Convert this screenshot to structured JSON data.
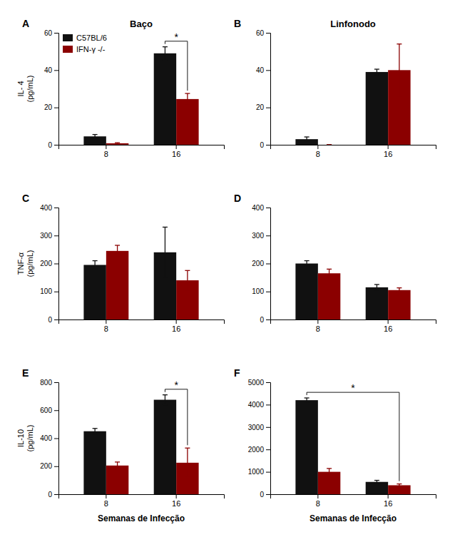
{
  "chart_data": [
    {
      "type": "bar",
      "title": "Baço",
      "y_label": "IL- 4\n(pg/mL)",
      "categories": [
        "8",
        "16"
      ],
      "series": [
        {
          "name": "C57BL/6",
          "color": "#111111",
          "values": [
            4.5,
            49.0
          ],
          "errors": [
            1.0,
            3.5
          ]
        },
        {
          "name": "IFN-γ -/-",
          "color": "#8B0000",
          "values": [
            0.8,
            24.5
          ],
          "errors": [
            0.3,
            3.0
          ]
        }
      ],
      "ylim": [
        0,
        60
      ],
      "yticks": [
        0,
        20,
        40,
        60
      ],
      "grid": false,
      "legend": "upper-left",
      "annotations": [
        {
          "text": "A"
        },
        {
          "text": "*",
          "from": {
            "series": 0,
            "category": 1
          },
          "to": {
            "series": 1,
            "category": 1
          }
        }
      ]
    },
    {
      "type": "bar",
      "title": "Linfonodo",
      "categories": [
        "8",
        "16"
      ],
      "series": [
        {
          "color": "#111111",
          "values": [
            3.0,
            39.0
          ],
          "errors": [
            1.2,
            1.5
          ]
        },
        {
          "color": "#8B0000",
          "values": [
            0.0,
            40.0
          ],
          "errors": [
            0.0,
            14.0
          ]
        }
      ],
      "ylim": [
        0,
        60
      ],
      "yticks": [
        0,
        20,
        40,
        60
      ],
      "grid": false,
      "annotations": [
        {
          "text": "B"
        }
      ]
    },
    {
      "type": "bar",
      "y_label": "TNF-α\n(pg/mL)",
      "categories": [
        "8",
        "16"
      ],
      "series": [
        {
          "color": "#111111",
          "values": [
            195,
            240
          ],
          "errors": [
            15,
            90
          ]
        },
        {
          "color": "#8B0000",
          "values": [
            245,
            140
          ],
          "errors": [
            20,
            35
          ]
        }
      ],
      "ylim": [
        0,
        400
      ],
      "yticks": [
        0,
        100,
        200,
        300,
        400
      ],
      "grid": false,
      "annotations": [
        {
          "text": "C"
        }
      ]
    },
    {
      "type": "bar",
      "categories": [
        "8",
        "16"
      ],
      "series": [
        {
          "color": "#111111",
          "values": [
            200,
            115
          ],
          "errors": [
            10,
            10
          ]
        },
        {
          "color": "#8B0000",
          "values": [
            165,
            105
          ],
          "errors": [
            15,
            8
          ]
        }
      ],
      "ylim": [
        0,
        400
      ],
      "yticks": [
        0,
        100,
        200,
        300,
        400
      ],
      "grid": false,
      "annotations": [
        {
          "text": "D"
        }
      ]
    },
    {
      "type": "bar",
      "y_label": "IL-10\n(pg/mL)",
      "x_label": "Semanas de Infecção",
      "categories": [
        "8",
        "16"
      ],
      "series": [
        {
          "color": "#111111",
          "values": [
            450,
            675
          ],
          "errors": [
            20,
            35
          ]
        },
        {
          "color": "#8B0000",
          "values": [
            205,
            225
          ],
          "errors": [
            25,
            105
          ]
        }
      ],
      "ylim": [
        0,
        800
      ],
      "yticks": [
        0,
        200,
        400,
        600,
        800
      ],
      "grid": false,
      "annotations": [
        {
          "text": "E"
        },
        {
          "text": "*",
          "from": {
            "series": 0,
            "category": 1
          },
          "to": {
            "series": 1,
            "category": 1
          }
        }
      ]
    },
    {
      "type": "bar",
      "x_label": "Semanas de Infecção",
      "categories": [
        "8",
        "16"
      ],
      "series": [
        {
          "color": "#111111",
          "values": [
            4200,
            550
          ],
          "errors": [
            100,
            70
          ]
        },
        {
          "color": "#8B0000",
          "values": [
            1000,
            400
          ],
          "errors": [
            150,
            60
          ]
        }
      ],
      "ylim": [
        0,
        5000
      ],
      "yticks": [
        0,
        1000,
        2000,
        3000,
        4000,
        5000
      ],
      "grid": false,
      "annotations": [
        {
          "text": "F"
        },
        {
          "text": "*",
          "from": {
            "series": 0,
            "category": 0
          },
          "to": {
            "series": 1,
            "category": 1
          }
        }
      ]
    }
  ]
}
